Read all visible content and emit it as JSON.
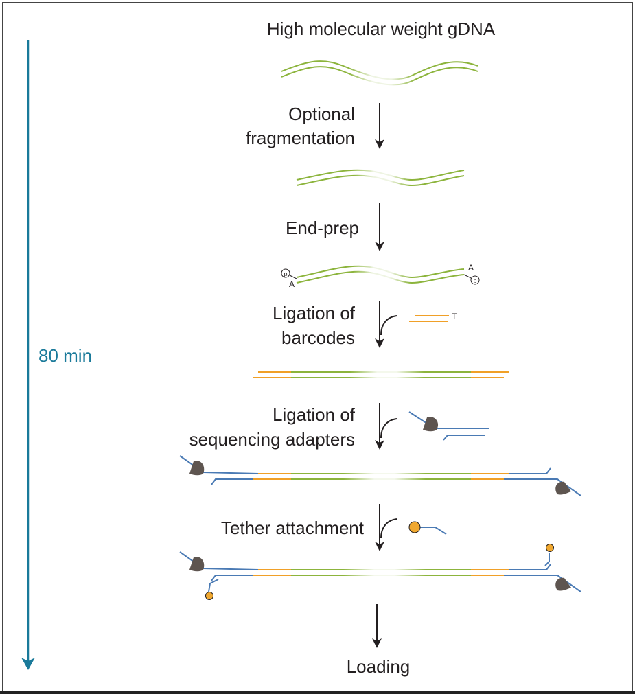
{
  "steps": {
    "input": "High molecular weight gDNA",
    "fragmentation_line1": "Optional",
    "fragmentation_line2": "fragmentation",
    "end_prep": "End-prep",
    "barcodes_line1": "Ligation of",
    "barcodes_line2": "barcodes",
    "adapters_line1": "Ligation of",
    "adapters_line2": "sequencing adapters",
    "tether": "Tether attachment",
    "loading": "Loading"
  },
  "timeline": {
    "label": "80 min"
  },
  "markers": {
    "phosphate": "p",
    "a_tail": "A",
    "t_overhang": "T"
  },
  "colors": {
    "dna": "#8cb43c",
    "barcode": "#f0a028",
    "adapter": "#4a7ab4",
    "motor": "#5e5550",
    "tether": "#f0a830",
    "timeline": "#1a7a9a",
    "arrow": "#231f20",
    "border": "#444444"
  }
}
